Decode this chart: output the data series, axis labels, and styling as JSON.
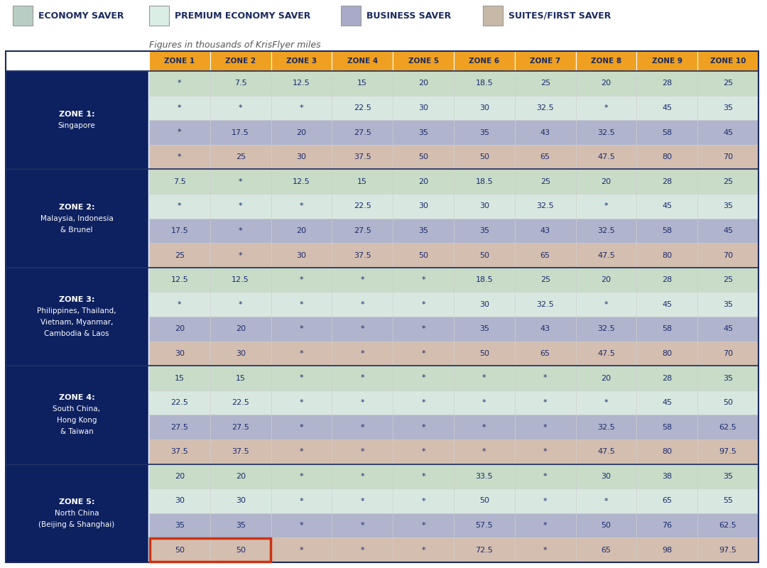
{
  "legend_items": [
    {
      "label": "ECONOMY SAVER",
      "color": "#b8cec4"
    },
    {
      "label": "PREMIUM ECONOMY SAVER",
      "color": "#daeee6"
    },
    {
      "label": "BUSINESS SAVER",
      "color": "#a8aac8"
    },
    {
      "label": "SUITES/FIRST SAVER",
      "color": "#c8b8a8"
    }
  ],
  "subtitle": "Figures in thousands of KrisFlyer miles",
  "header_bg": "#f0a020",
  "header_text_color": "#1a2a5e",
  "zone_header_bg": "#0d2060",
  "zone_header_text": "#ffffff",
  "col_headers": [
    "ZONE 1",
    "ZONE 2",
    "ZONE 3",
    "ZONE 4",
    "ZONE 5",
    "ZONE 6",
    "ZONE 7",
    "ZONE 8",
    "ZONE 9",
    "ZONE 10"
  ],
  "row_zones": [
    {
      "label": "ZONE 1:\nSingapore",
      "rows": 4
    },
    {
      "label": "ZONE 2:\nMalaysia, Indonesia\n& Brunel",
      "rows": 4
    },
    {
      "label": "ZONE 3:\nPhilippines, Thailand,\nVietnam, Myanmar,\nCambodia & Laos",
      "rows": 4
    },
    {
      "label": "ZONE 4:\nSouth China,\nHong Kong\n& Taiwan",
      "rows": 4
    },
    {
      "label": "ZONE 5:\nNorth China\n(Beijing & Shanghai)",
      "rows": 4
    }
  ],
  "row_colors": [
    "#c8dcc8",
    "#d8e8e0",
    "#b0b4cc",
    "#d4beb0",
    "#c8dcc8",
    "#d8e8e0",
    "#b0b4cc",
    "#d4beb0",
    "#c8dcc8",
    "#d8e8e0",
    "#b0b4cc",
    "#d4beb0",
    "#c8dcc8",
    "#d8e8e0",
    "#b0b4cc",
    "#d4beb0",
    "#c8dcc8",
    "#d8e8e0",
    "#b0b4cc",
    "#d4beb0"
  ],
  "table_data": [
    [
      "*",
      "7.5",
      "12.5",
      "15",
      "20",
      "18.5",
      "25",
      "20",
      "28",
      "25"
    ],
    [
      "*",
      "*",
      "*",
      "22.5",
      "30",
      "30",
      "32.5",
      "*",
      "45",
      "35"
    ],
    [
      "*",
      "17.5",
      "20",
      "27.5",
      "35",
      "35",
      "43",
      "32.5",
      "58",
      "45"
    ],
    [
      "*",
      "25",
      "30",
      "37.5",
      "50",
      "50",
      "65",
      "47.5",
      "80",
      "70"
    ],
    [
      "7.5",
      "*",
      "12.5",
      "15",
      "20",
      "18.5",
      "25",
      "20",
      "28",
      "25"
    ],
    [
      "*",
      "*",
      "*",
      "22.5",
      "30",
      "30",
      "32.5",
      "*",
      "45",
      "35"
    ],
    [
      "17.5",
      "*",
      "20",
      "27.5",
      "35",
      "35",
      "43",
      "32.5",
      "58",
      "45"
    ],
    [
      "25",
      "*",
      "30",
      "37.5",
      "50",
      "50",
      "65",
      "47.5",
      "80",
      "70"
    ],
    [
      "12.5",
      "12.5",
      "*",
      "*",
      "*",
      "18.5",
      "25",
      "20",
      "28",
      "25"
    ],
    [
      "*",
      "*",
      "*",
      "*",
      "*",
      "30",
      "32.5",
      "*",
      "45",
      "35"
    ],
    [
      "20",
      "20",
      "*",
      "*",
      "*",
      "35",
      "43",
      "32.5",
      "58",
      "45"
    ],
    [
      "30",
      "30",
      "*",
      "*",
      "*",
      "50",
      "65",
      "47.5",
      "80",
      "70"
    ],
    [
      "15",
      "15",
      "*",
      "*",
      "*",
      "*",
      "*",
      "20",
      "28",
      "35"
    ],
    [
      "22.5",
      "22.5",
      "*",
      "*",
      "*",
      "*",
      "*",
      "*",
      "45",
      "50"
    ],
    [
      "27.5",
      "27.5",
      "*",
      "*",
      "*",
      "*",
      "*",
      "32.5",
      "58",
      "62.5"
    ],
    [
      "37.5",
      "37.5",
      "*",
      "*",
      "*",
      "*",
      "*",
      "47.5",
      "80",
      "97.5"
    ],
    [
      "20",
      "20",
      "*",
      "*",
      "*",
      "33.5",
      "*",
      "30",
      "38",
      "35"
    ],
    [
      "30",
      "30",
      "*",
      "*",
      "*",
      "50",
      "*",
      "*",
      "65",
      "55"
    ],
    [
      "35",
      "35",
      "*",
      "*",
      "*",
      "57.5",
      "*",
      "50",
      "76",
      "62.5"
    ],
    [
      "50",
      "50",
      "*",
      "*",
      "*",
      "72.5",
      "*",
      "65",
      "98",
      "97.5"
    ]
  ],
  "highlighted_row": 19,
  "highlight_cols": [
    0,
    1
  ],
  "highlight_color": "#cc3311",
  "divider_color": "#1a2a5e",
  "cell_text_color": "#1a2a6e",
  "bg_color": "#ffffff"
}
